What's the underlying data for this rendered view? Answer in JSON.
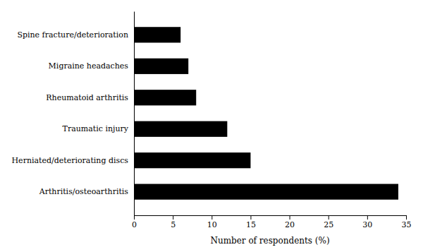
{
  "chart_data": {
    "type": "bar",
    "orientation": "horizontal",
    "categories": [
      "Arthritis/osteoarthritis",
      "Herniated/deteriorating discs",
      "Traumatic injury",
      "Rheumatoid arthritis",
      "Migraine headaches",
      "Spine fracture/deterioration"
    ],
    "values": [
      34,
      15,
      12,
      8,
      7,
      6
    ],
    "color": "#000000",
    "xlabel": "Number of respondents (%)",
    "xlim": [
      0,
      35
    ],
    "xticks": [
      0,
      5,
      10,
      15,
      20,
      25,
      30,
      35
    ],
    "grid": false
  }
}
